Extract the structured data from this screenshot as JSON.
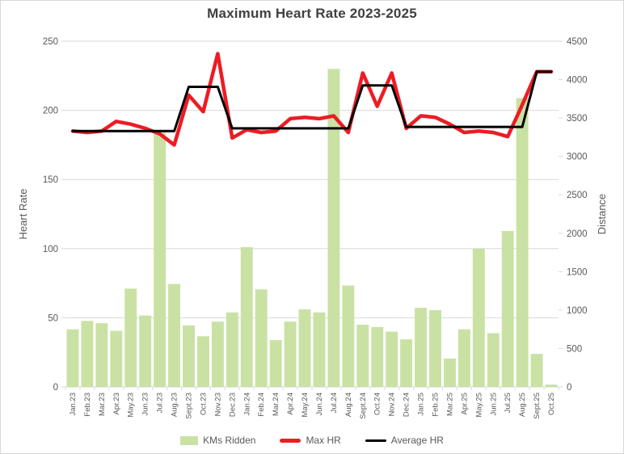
{
  "chart_data": {
    "type": "combo-bar-line",
    "title": "Maximum Heart Rate 2023-2025",
    "categories": [
      "Jan.23",
      "Feb.23",
      "Mar.23",
      "Apr.23",
      "May.23",
      "Jun.23",
      "Jul.23",
      "Aug.23",
      "Sept.23",
      "Oct.23",
      "Nov.23",
      "Dec.23",
      "Jan.24",
      "Feb.24",
      "Mar.24",
      "Apr.24",
      "May.24",
      "Jun.24",
      "Jul.24",
      "Aug.24",
      "Sept.24",
      "Oct.24",
      "Nov.24",
      "Dec.24",
      "Jan.25",
      "Feb.25",
      "Mar.25",
      "Apr.25",
      "May.25",
      "Jun.25",
      "Jul.25",
      "Aug.25",
      "Sept.25",
      "Oct.25"
    ],
    "series": [
      {
        "name": "KMs Ridden",
        "type": "bar",
        "axis": "right",
        "color": "#C9E2A4",
        "values": [
          750,
          860,
          830,
          730,
          1280,
          930,
          3310,
          1340,
          800,
          660,
          850,
          970,
          1820,
          1270,
          610,
          850,
          1010,
          970,
          4140,
          1320,
          810,
          780,
          720,
          620,
          1030,
          1000,
          370,
          750,
          1800,
          700,
          2030,
          3760,
          430,
          30
        ]
      },
      {
        "name": "Max HR",
        "type": "line",
        "axis": "left",
        "color": "#ED1C24",
        "stroke_width": 4.5,
        "values": [
          185,
          184,
          185,
          192,
          190,
          187,
          183,
          175,
          211,
          199,
          241,
          180,
          186,
          184,
          185,
          194,
          195,
          194,
          196,
          184,
          227,
          203,
          227,
          187,
          196,
          195,
          190,
          184,
          185,
          184,
          181,
          204,
          228,
          228
        ]
      },
      {
        "name": "Average HR",
        "type": "line",
        "axis": "left",
        "color": "#000000",
        "stroke_width": 3,
        "values": [
          185,
          185,
          185,
          185,
          185,
          185,
          185,
          185,
          217,
          217,
          217,
          187,
          187,
          187,
          187,
          187,
          187,
          187,
          187,
          187,
          218,
          218,
          218,
          188,
          188,
          188,
          188,
          188,
          188,
          188,
          188,
          188,
          228,
          228
        ]
      }
    ],
    "axes": {
      "left": {
        "title": "Heart Rate",
        "min": 0,
        "max": 250,
        "ticks": [
          0,
          50,
          100,
          150,
          200,
          250
        ]
      },
      "right": {
        "title": "Distance",
        "min": 0,
        "max": 4500,
        "ticks": [
          0,
          500,
          1000,
          1500,
          2000,
          2500,
          3000,
          3500,
          4000,
          4500
        ]
      }
    },
    "legend": {
      "position": "bottom",
      "entries": [
        "KMs Ridden",
        "Max HR",
        "Average HR"
      ]
    },
    "grid": "horizontal",
    "colors": {
      "gridline": "#D9D9D9",
      "axis_text": "#595959",
      "title_text": "#404040",
      "background": "#FFFFFF"
    }
  }
}
